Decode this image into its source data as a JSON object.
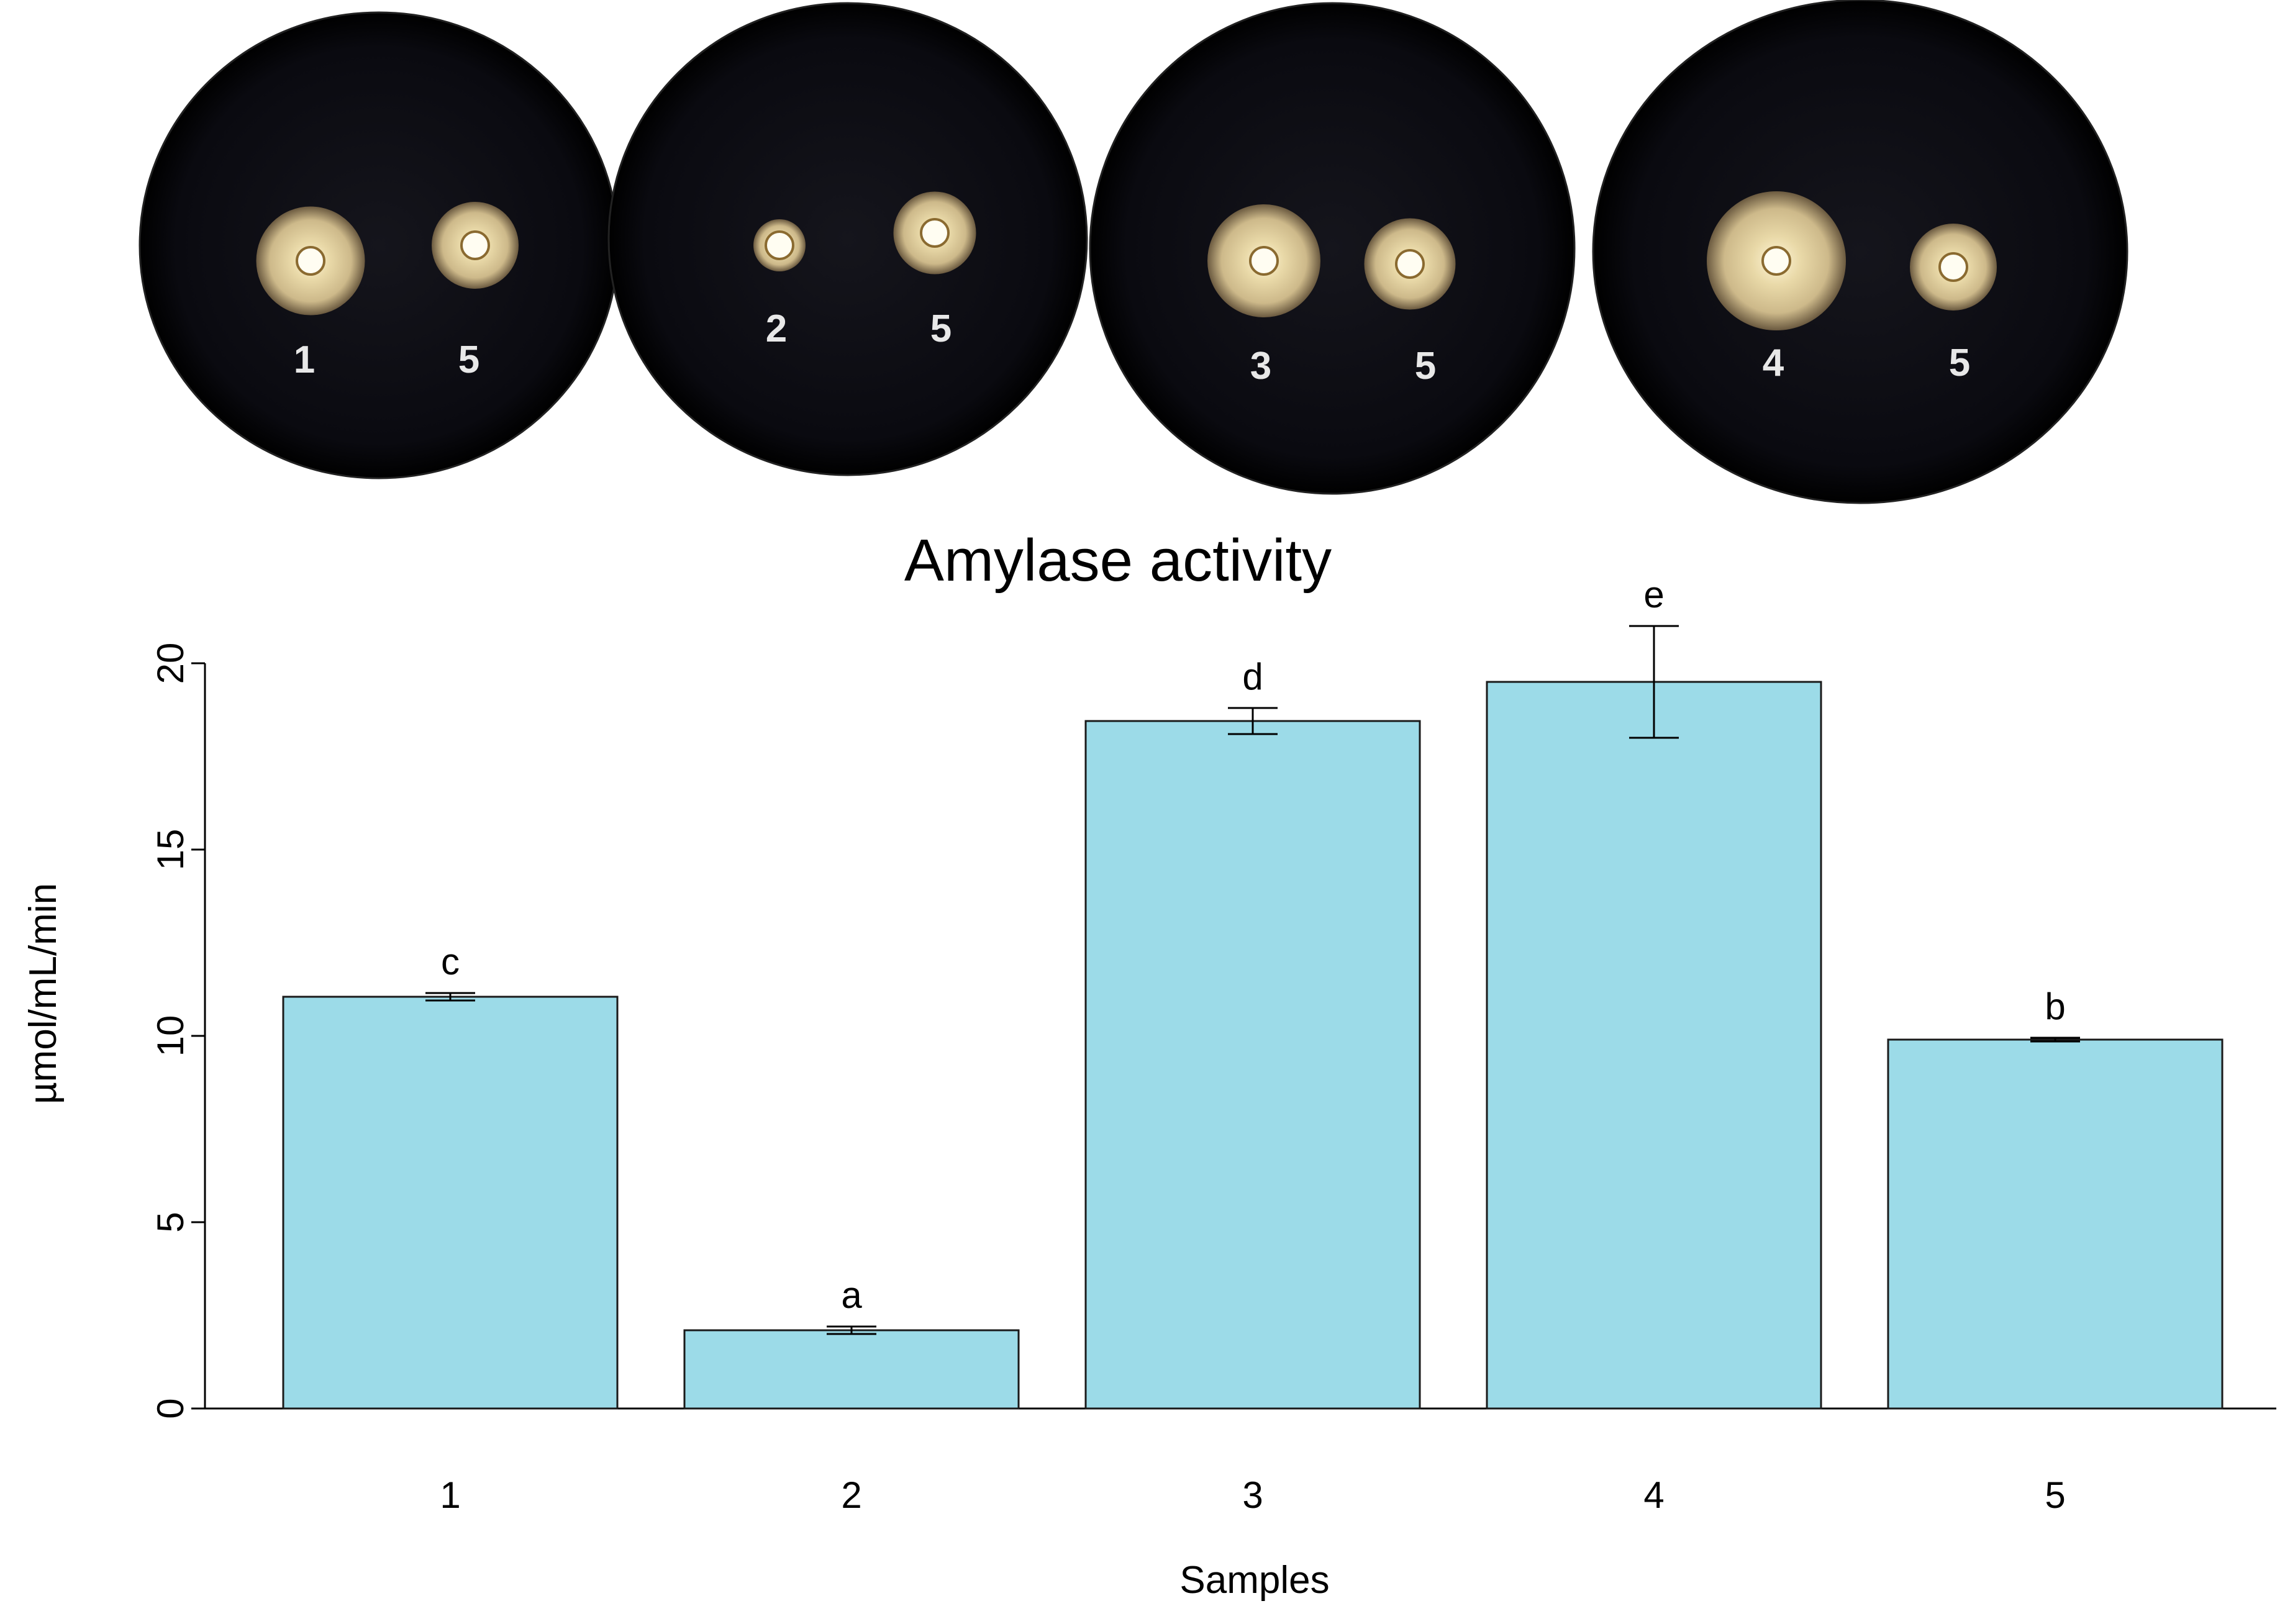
{
  "plates": [
    {
      "labels": [
        "1",
        "5"
      ],
      "zones": [
        {
          "halo": 1.25
        },
        {
          "halo": 1.0
        }
      ]
    },
    {
      "labels": [
        "2",
        "5"
      ],
      "zones": [
        {
          "halo": 0.6
        },
        {
          "halo": 0.95
        }
      ]
    },
    {
      "labels": [
        "3",
        "5"
      ],
      "zones": [
        {
          "halo": 1.3
        },
        {
          "halo": 1.05
        }
      ]
    },
    {
      "labels": [
        "4",
        "5"
      ],
      "zones": [
        {
          "halo": 1.6
        },
        {
          "halo": 1.0
        }
      ]
    }
  ],
  "chart_data": {
    "type": "bar",
    "title": "Amylase activity",
    "xlabel": "Samples",
    "ylabel": "µmol/mL/min",
    "categories": [
      "1",
      "2",
      "3",
      "4",
      "5"
    ],
    "values": [
      11.05,
      2.1,
      18.45,
      19.5,
      9.9
    ],
    "errors": [
      0.1,
      0.1,
      0.35,
      1.5,
      0.05
    ],
    "significance": [
      "c",
      "a",
      "d",
      "e",
      "b"
    ],
    "ylim": [
      0,
      20
    ],
    "yticks": [
      0,
      5,
      10,
      15,
      20
    ],
    "grid": false,
    "legend": "none",
    "bar_color": "#9cdbe8",
    "bar_edge_color": "#1a1a1a"
  }
}
